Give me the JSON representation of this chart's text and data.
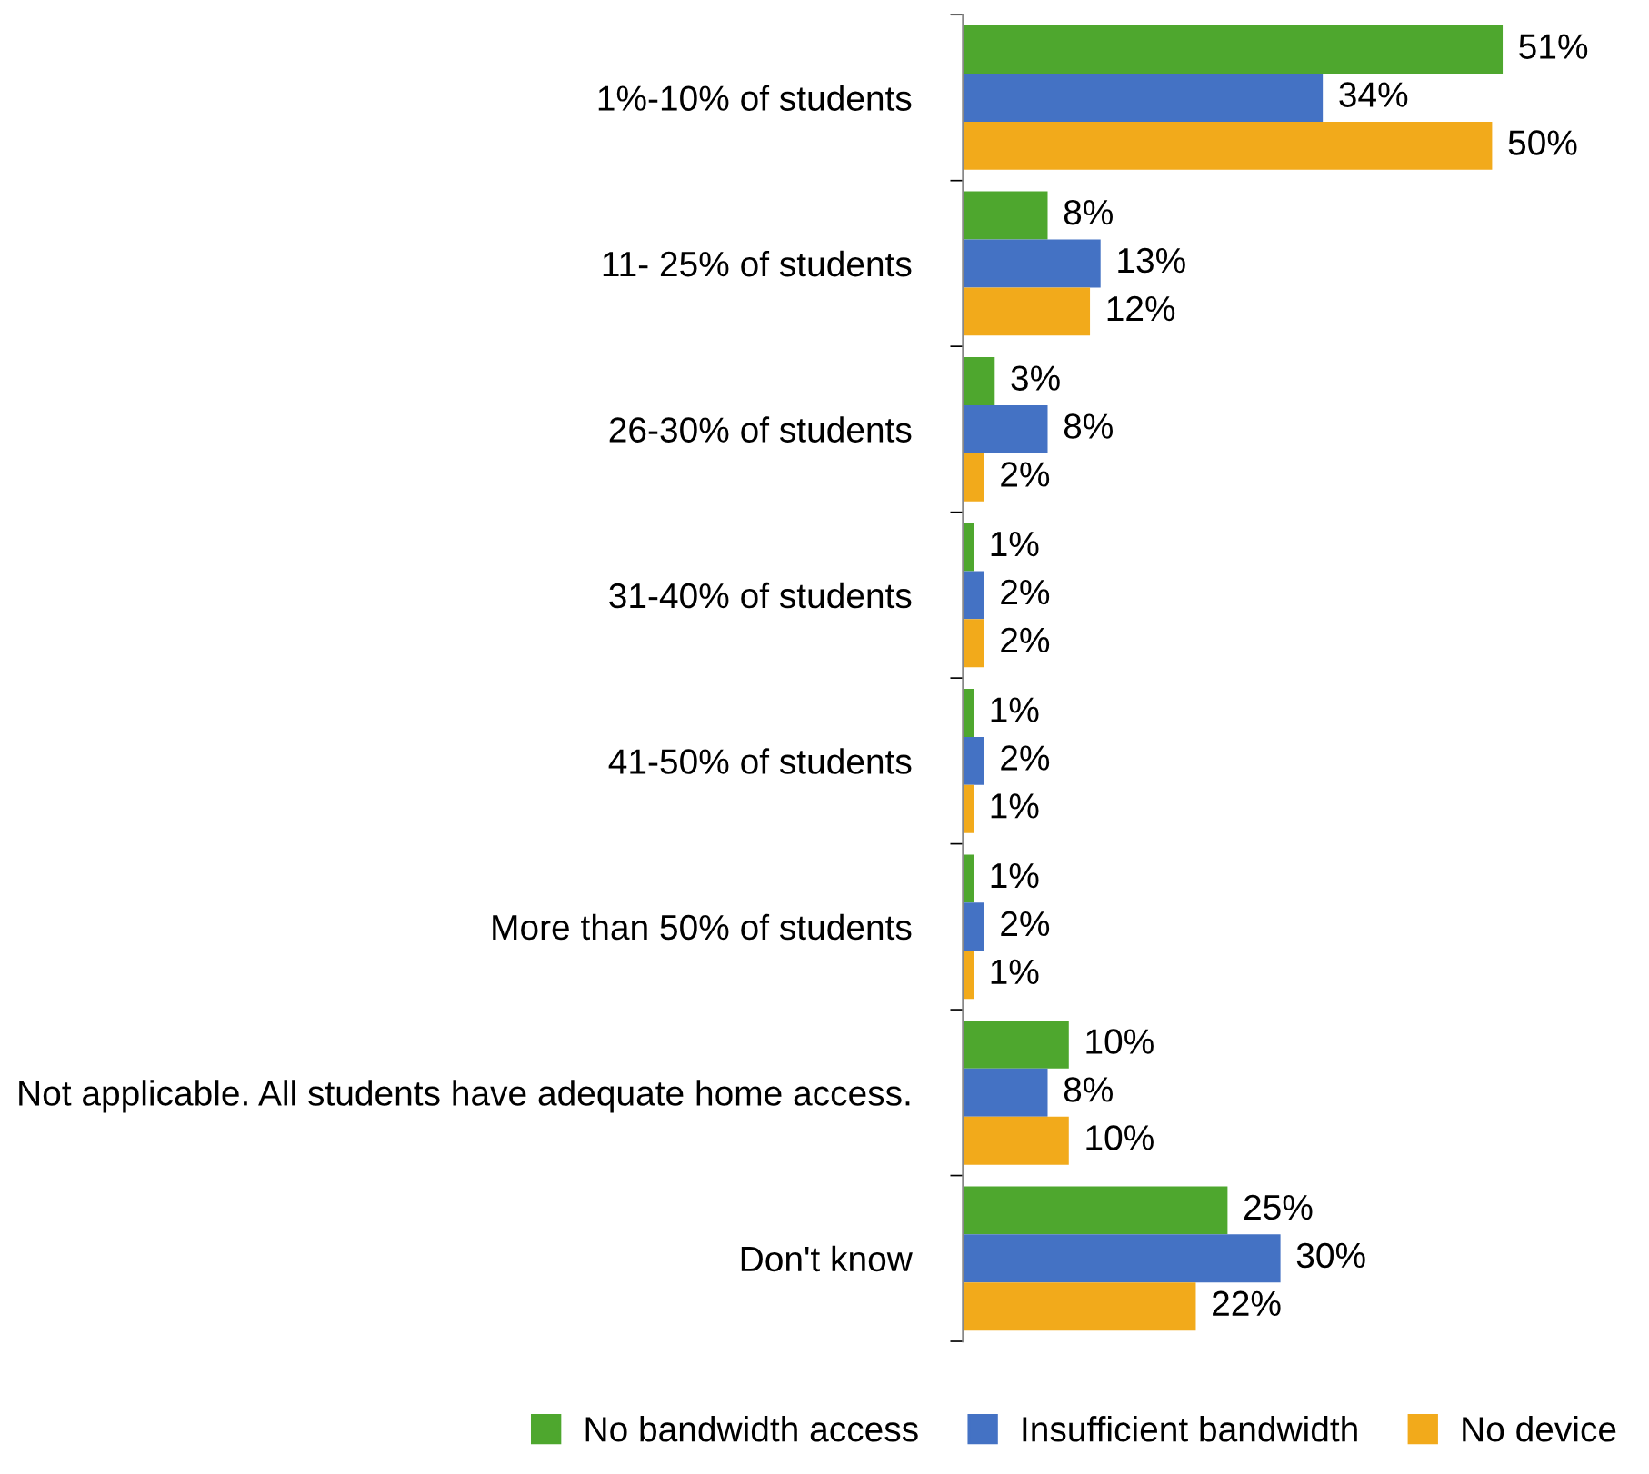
{
  "chart_data": {
    "type": "bar",
    "orientation": "horizontal",
    "categories": [
      "1%-10% of students",
      "11- 25% of students",
      "26-30% of students",
      "31-40% of students",
      "41-50% of students",
      "More than 50% of students",
      "Not applicable. All students have adequate home access.",
      "Don't know"
    ],
    "series": [
      {
        "name": "No bandwidth access",
        "color": "#4ea72e",
        "values": [
          51,
          8,
          3,
          1,
          1,
          1,
          10,
          25
        ],
        "value_labels": [
          "51%",
          "8%",
          "3%",
          "1%",
          "1%",
          "1%",
          "10%",
          "25%"
        ]
      },
      {
        "name": "Insufficient bandwidth",
        "color": "#4472c4",
        "values": [
          34,
          13,
          8,
          2,
          2,
          2,
          8,
          30
        ],
        "value_labels": [
          "34%",
          "13%",
          "8%",
          "2%",
          "2%",
          "2%",
          "8%",
          "30%"
        ]
      },
      {
        "name": "No device",
        "color": "#f2aa1b",
        "values": [
          50,
          12,
          2,
          2,
          1,
          1,
          10,
          22
        ],
        "value_labels": [
          "50%",
          "12%",
          "2%",
          "2%",
          "1%",
          "1%",
          "10%",
          "22%"
        ]
      }
    ],
    "tick_labels": "y",
    "grid": false,
    "legend": "bottom"
  }
}
